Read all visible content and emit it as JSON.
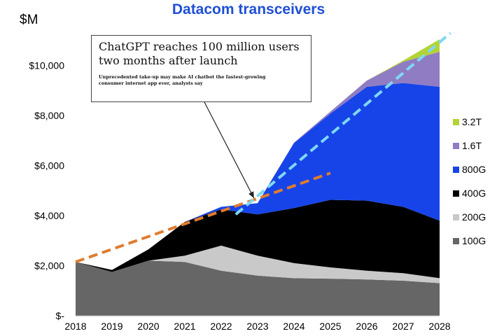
{
  "chart_data": {
    "type": "area",
    "title": "Datacom transceivers",
    "unit_label": "$M",
    "x": [
      "2018",
      "2019",
      "2020",
      "2021",
      "2022",
      "2023",
      "2024",
      "2025",
      "2026",
      "2027",
      "2028"
    ],
    "y_ticks": [
      0,
      2000,
      4000,
      6000,
      8000,
      10000
    ],
    "y_tick_labels": [
      "$-",
      "$2,000",
      "$4,000",
      "$6,000",
      "$8,000",
      "$10,000"
    ],
    "ylim": [
      0,
      11500
    ],
    "grid": false,
    "legend_position": "right",
    "series": [
      {
        "name": "100G",
        "color": "#666666",
        "values": [
          2150,
          1750,
          2200,
          2150,
          1800,
          1600,
          1500,
          1480,
          1450,
          1400,
          1300
        ]
      },
      {
        "name": "200G",
        "color": "#c9c9c9",
        "values": [
          0,
          0,
          0,
          250,
          1000,
          800,
          600,
          450,
          350,
          300,
          200
        ]
      },
      {
        "name": "400G",
        "color": "#000000",
        "values": [
          0,
          80,
          450,
          1350,
          1450,
          1650,
          2200,
          2700,
          2800,
          2650,
          2300
        ]
      },
      {
        "name": "800G",
        "color": "#1744e8",
        "values": [
          0,
          0,
          0,
          0,
          100,
          450,
          2600,
          3450,
          4550,
          4950,
          5350
        ]
      },
      {
        "name": "1.6T",
        "color": "#8f7cc2",
        "values": [
          0,
          0,
          0,
          0,
          0,
          0,
          20,
          80,
          250,
          850,
          1400
        ]
      },
      {
        "name": "3.2T",
        "color": "#b3d335",
        "values": [
          0,
          0,
          0,
          0,
          0,
          0,
          0,
          0,
          0,
          50,
          500
        ]
      }
    ],
    "trend_lines": [
      {
        "name": "pre-ChatGPT trend",
        "color": "#e07c2e",
        "from": [
          "2018",
          2150
        ],
        "to": [
          "2025",
          5700
        ]
      },
      {
        "name": "post-ChatGPT trend",
        "color": "#7fd8f2",
        "from": [
          "2022.4",
          4050
        ],
        "to": [
          "2028.3",
          11300
        ]
      }
    ],
    "annotation": {
      "headline": "ChatGPT reaches 100 million users two months after launch",
      "subhead": "Unprecedented take-up may make AI chatbot the fastest-growing consumer internet app ever, analysts say",
      "points_to": [
        "2022.9",
        4700
      ]
    }
  }
}
